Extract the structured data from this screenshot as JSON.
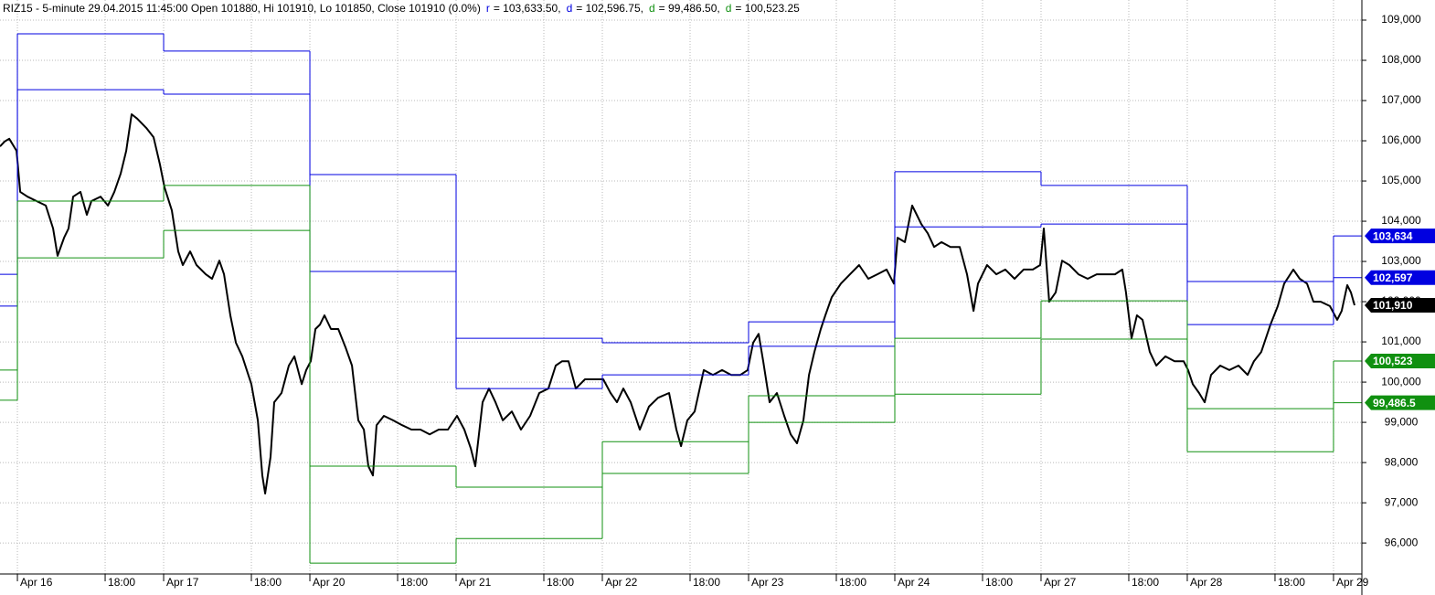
{
  "chart_data": {
    "type": "line",
    "title": "RIZ15 - 5-minute 29.04.2015 11:45:00 Open 101880, Hi 101910, Lo 101850, Close 101910 (0.0%)",
    "xlim": [
      -0.119,
      9.194
    ],
    "ylim": [
      95230,
      109500
    ],
    "grid": true,
    "xticks": [
      {
        "value": 0,
        "label": "Apr 16"
      },
      {
        "value": 0.6,
        "label": "18:00"
      },
      {
        "value": 1,
        "label": "Apr 17"
      },
      {
        "value": 1.6,
        "label": "18:00"
      },
      {
        "value": 2,
        "label": "Apr 20"
      },
      {
        "value": 2.6,
        "label": "18:00"
      },
      {
        "value": 3,
        "label": "Apr 21"
      },
      {
        "value": 3.6,
        "label": "18:00"
      },
      {
        "value": 4,
        "label": "Apr 22"
      },
      {
        "value": 4.6,
        "label": "18:00"
      },
      {
        "value": 5,
        "label": "Apr 23"
      },
      {
        "value": 5.6,
        "label": "18:00"
      },
      {
        "value": 6,
        "label": "Apr 24"
      },
      {
        "value": 6.6,
        "label": "18:00"
      },
      {
        "value": 7,
        "label": "Apr 27"
      },
      {
        "value": 7.6,
        "label": "18:00"
      },
      {
        "value": 8,
        "label": "Apr 28"
      },
      {
        "value": 8.6,
        "label": "18:00"
      },
      {
        "value": 9,
        "label": "Apr 29"
      }
    ],
    "yticks": [
      {
        "value": 96000,
        "label": "96,000"
      },
      {
        "value": 97000,
        "label": "97,000"
      },
      {
        "value": 98000,
        "label": "98,000"
      },
      {
        "value": 99000,
        "label": "99,000"
      },
      {
        "value": 100000,
        "label": "100,000"
      },
      {
        "value": 101000,
        "label": "101,000"
      },
      {
        "value": 102000,
        "label": "102,000"
      },
      {
        "value": 103000,
        "label": "103,000"
      },
      {
        "value": 104000,
        "label": "104,000"
      },
      {
        "value": 105000,
        "label": "105,000"
      },
      {
        "value": 106000,
        "label": "106,000"
      },
      {
        "value": 107000,
        "label": "107,000"
      },
      {
        "value": 108000,
        "label": "108,000"
      },
      {
        "value": 109000,
        "label": "109,000"
      }
    ],
    "series": [
      {
        "style": "line",
        "color": "#000000",
        "last_label": "101,910",
        "x": [
          -0.119,
          -0.088,
          -0.056,
          -0.006,
          0.019,
          0.069,
          0.131,
          0.194,
          0.244,
          0.275,
          0.319,
          0.35,
          0.381,
          0.431,
          0.475,
          0.506,
          0.569,
          0.619,
          0.663,
          0.706,
          0.744,
          0.781,
          0.819,
          0.881,
          0.931,
          0.975,
          1.006,
          1.056,
          1.1,
          1.131,
          1.181,
          1.225,
          1.288,
          1.331,
          1.381,
          1.413,
          1.456,
          1.494,
          1.538,
          1.6,
          1.644,
          1.675,
          1.694,
          1.731,
          1.756,
          1.806,
          1.856,
          1.894,
          1.944,
          1.975,
          2.006,
          2.038,
          2.069,
          2.1,
          2.144,
          2.194,
          2.244,
          2.288,
          2.331,
          2.369,
          2.4,
          2.431,
          2.456,
          2.506,
          2.569,
          2.631,
          2.694,
          2.756,
          2.819,
          2.881,
          2.944,
          3.006,
          3.056,
          3.1,
          3.131,
          3.181,
          3.225,
          3.269,
          3.319,
          3.381,
          3.444,
          3.506,
          3.569,
          3.631,
          3.681,
          3.725,
          3.769,
          3.819,
          3.881,
          3.944,
          4.006,
          4.056,
          4.1,
          4.144,
          4.194,
          4.256,
          4.319,
          4.381,
          4.456,
          4.506,
          4.538,
          4.581,
          4.631,
          4.694,
          4.756,
          4.819,
          4.881,
          4.944,
          4.994,
          5.031,
          5.069,
          5.1,
          5.144,
          5.194,
          5.244,
          5.288,
          5.331,
          5.375,
          5.413,
          5.45,
          5.494,
          5.525,
          5.569,
          5.631,
          5.694,
          5.756,
          5.819,
          5.881,
          5.944,
          5.994,
          6.019,
          6.069,
          6.119,
          6.15,
          6.181,
          6.225,
          6.269,
          6.319,
          6.381,
          6.444,
          6.494,
          6.538,
          6.569,
          6.631,
          6.694,
          6.756,
          6.819,
          6.881,
          6.944,
          6.994,
          7.019,
          7.056,
          7.1,
          7.144,
          7.194,
          7.256,
          7.319,
          7.381,
          7.444,
          7.506,
          7.556,
          7.581,
          7.619,
          7.656,
          7.694,
          7.744,
          7.788,
          7.85,
          7.913,
          7.975,
          8.006,
          8.038,
          8.081,
          8.119,
          8.163,
          8.225,
          8.288,
          8.35,
          8.413,
          8.456,
          8.506,
          8.569,
          8.619,
          8.663,
          8.725,
          8.769,
          8.819,
          8.863,
          8.913,
          8.975,
          9.025,
          9.056,
          9.094,
          9.119,
          9.144
        ],
        "values": [
          105860,
          105980,
          106050,
          105750,
          104730,
          104610,
          104500,
          104390,
          103820,
          103140,
          103590,
          103820,
          104610,
          104730,
          104160,
          104500,
          104610,
          104390,
          104730,
          105180,
          105750,
          106660,
          106550,
          106320,
          106090,
          105410,
          104840,
          104270,
          103250,
          102910,
          103250,
          102910,
          102680,
          102570,
          103020,
          102680,
          101660,
          100980,
          100640,
          99950,
          99050,
          97680,
          97230,
          98140,
          99500,
          99730,
          100410,
          100640,
          99950,
          100300,
          100520,
          101320,
          101430,
          101660,
          101320,
          101320,
          100860,
          100410,
          99050,
          98820,
          97910,
          97680,
          98930,
          99160,
          99050,
          98930,
          98820,
          98820,
          98700,
          98820,
          98820,
          99160,
          98820,
          98360,
          97910,
          99500,
          99840,
          99500,
          99050,
          99270,
          98820,
          99160,
          99730,
          99840,
          100410,
          100520,
          100520,
          99840,
          100070,
          100070,
          100070,
          99730,
          99500,
          99840,
          99500,
          98820,
          99390,
          99610,
          99730,
          98820,
          98410,
          99050,
          99270,
          100300,
          100180,
          100300,
          100180,
          100180,
          100300,
          100980,
          101200,
          100520,
          99500,
          99730,
          99160,
          98700,
          98480,
          99050,
          100180,
          100750,
          101320,
          101660,
          102110,
          102450,
          102680,
          102910,
          102570,
          102680,
          102800,
          102450,
          103590,
          103480,
          104390,
          104160,
          103930,
          103700,
          103360,
          103480,
          103360,
          103360,
          102680,
          101770,
          102450,
          102910,
          102680,
          102800,
          102570,
          102800,
          102800,
          102910,
          103820,
          102000,
          102230,
          103020,
          102910,
          102680,
          102570,
          102680,
          102680,
          102680,
          102800,
          102230,
          101090,
          101660,
          101550,
          100750,
          100410,
          100640,
          100520,
          100520,
          100300,
          99950,
          99730,
          99500,
          100180,
          100410,
          100300,
          100410,
          100180,
          100520,
          100750,
          101430,
          101890,
          102450,
          102800,
          102570,
          102450,
          102000,
          102000,
          101890,
          101550,
          101770,
          102410,
          102230,
          101910
        ]
      },
      {
        "style": "step",
        "name": "r",
        "legend_value": "= 103,633.50,",
        "color": "#0000e0",
        "last_label": "103,634",
        "x": [
          -0.119,
          0,
          1,
          2,
          3,
          4,
          5,
          6,
          7,
          8,
          9
        ],
        "values": [
          102680,
          108660,
          108230,
          105160,
          101090,
          100980,
          101500,
          105230,
          104890,
          102500,
          103633.5
        ]
      },
      {
        "style": "step",
        "name": "d",
        "legend_value": "= 102,596.75,",
        "color": "#0000e0",
        "last_label": "102,597",
        "x": [
          -0.119,
          0,
          1,
          2,
          3,
          4,
          5,
          6,
          7,
          8,
          9
        ],
        "values": [
          101890,
          107270,
          107160,
          102750,
          99840,
          100180,
          100890,
          103860,
          103930,
          101430,
          102596.75
        ]
      },
      {
        "style": "step",
        "name": "d",
        "legend_value": "= 99,486.50,",
        "color": "#109010",
        "last_label": "99,486.5",
        "x": [
          -0.119,
          0,
          1,
          2,
          3,
          4,
          5,
          6,
          7,
          8,
          9
        ],
        "values": [
          99550,
          103090,
          103770,
          95500,
          96110,
          97730,
          99000,
          99700,
          101070,
          98270,
          99486.5
        ]
      },
      {
        "style": "step",
        "name": "d",
        "legend_value": "= 100,523.25",
        "color": "#109010",
        "last_label": "100,523",
        "x": [
          -0.119,
          0,
          1,
          2,
          3,
          4,
          5,
          6,
          7,
          8,
          9
        ],
        "values": [
          100300,
          104500,
          104890,
          97910,
          97390,
          98520,
          99660,
          101090,
          102020,
          99340,
          100523.25
        ]
      }
    ]
  }
}
